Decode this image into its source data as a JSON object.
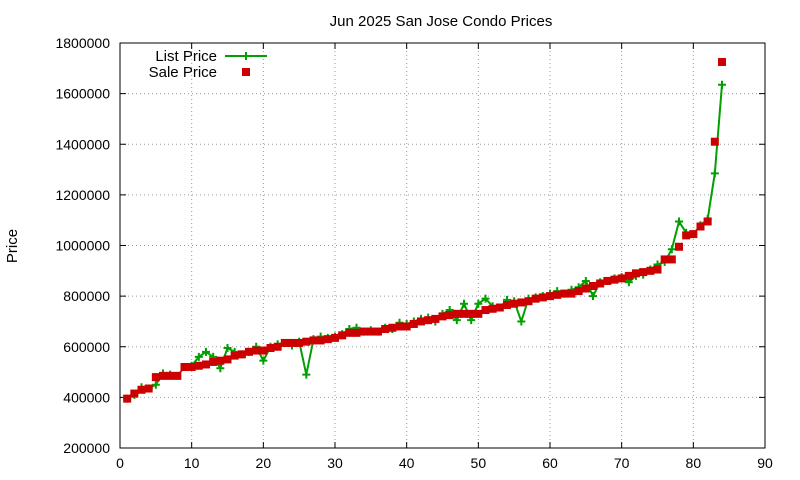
{
  "chart_data": {
    "type": "line",
    "title": "Jun 2025 San Jose Condo Prices",
    "xlabel": "",
    "ylabel": "Price",
    "xlim": [
      0,
      90
    ],
    "ylim": [
      200000,
      1800000
    ],
    "x_ticks": [
      0,
      10,
      20,
      30,
      40,
      50,
      60,
      70,
      80,
      90
    ],
    "y_ticks": [
      200000,
      400000,
      600000,
      800000,
      1000000,
      1200000,
      1400000,
      1600000,
      1800000
    ],
    "grid": true,
    "legend_position": "top-left",
    "series": [
      {
        "name": "List Price",
        "style": "line-plus",
        "color": "#00a000",
        "x": [
          1,
          2,
          3,
          4,
          5,
          6,
          7,
          8,
          9,
          10,
          11,
          12,
          13,
          14,
          15,
          16,
          17,
          18,
          19,
          20,
          21,
          22,
          23,
          24,
          25,
          26,
          27,
          28,
          29,
          30,
          31,
          32,
          33,
          34,
          35,
          36,
          37,
          38,
          39,
          40,
          41,
          42,
          43,
          44,
          45,
          46,
          47,
          48,
          49,
          50,
          51,
          52,
          53,
          54,
          55,
          56,
          57,
          58,
          59,
          60,
          61,
          62,
          63,
          64,
          65,
          66,
          67,
          68,
          69,
          70,
          71,
          72,
          73,
          74,
          75,
          76,
          77,
          78,
          79,
          80,
          81,
          82,
          83,
          84
        ],
        "y": [
          395000,
          410000,
          440000,
          435000,
          450000,
          495000,
          490000,
          485000,
          520000,
          525000,
          560000,
          580000,
          560000,
          515000,
          595000,
          580000,
          570000,
          580000,
          600000,
          545000,
          600000,
          610000,
          615000,
          605000,
          620000,
          490000,
          630000,
          640000,
          635000,
          640000,
          650000,
          670000,
          675000,
          660000,
          665000,
          660000,
          675000,
          670000,
          695000,
          690000,
          700000,
          710000,
          715000,
          700000,
          730000,
          745000,
          705000,
          770000,
          705000,
          770000,
          790000,
          760000,
          755000,
          785000,
          780000,
          700000,
          790000,
          795000,
          800000,
          810000,
          820000,
          810000,
          825000,
          835000,
          860000,
          800000,
          855000,
          860000,
          870000,
          875000,
          855000,
          880000,
          885000,
          905000,
          925000,
          935000,
          985000,
          1095000,
          1050000,
          1045000,
          1080000,
          1105000,
          1285000,
          1635000
        ]
      },
      {
        "name": "Sale Price",
        "style": "square",
        "color": "#cc0000",
        "x": [
          1,
          2,
          3,
          4,
          5,
          6,
          7,
          8,
          9,
          10,
          11,
          12,
          13,
          14,
          15,
          16,
          17,
          18,
          19,
          20,
          21,
          22,
          23,
          24,
          25,
          26,
          27,
          28,
          29,
          30,
          31,
          32,
          33,
          34,
          35,
          36,
          37,
          38,
          39,
          40,
          41,
          42,
          43,
          44,
          45,
          46,
          47,
          48,
          49,
          50,
          51,
          52,
          53,
          54,
          55,
          56,
          57,
          58,
          59,
          60,
          61,
          62,
          63,
          64,
          65,
          66,
          67,
          68,
          69,
          70,
          71,
          72,
          73,
          74,
          75,
          76,
          77,
          78,
          79,
          80,
          81,
          82,
          83,
          84
        ],
        "y": [
          395000,
          415000,
          430000,
          435000,
          480000,
          485000,
          485000,
          485000,
          520000,
          520000,
          525000,
          530000,
          540000,
          545000,
          550000,
          565000,
          570000,
          580000,
          585000,
          585000,
          595000,
          600000,
          615000,
          615000,
          615000,
          620000,
          625000,
          625000,
          630000,
          635000,
          645000,
          655000,
          655000,
          660000,
          660000,
          660000,
          670000,
          675000,
          680000,
          680000,
          690000,
          700000,
          705000,
          710000,
          720000,
          725000,
          730000,
          730000,
          730000,
          730000,
          745000,
          750000,
          755000,
          765000,
          770000,
          775000,
          780000,
          790000,
          795000,
          800000,
          805000,
          810000,
          810000,
          820000,
          830000,
          840000,
          850000,
          860000,
          865000,
          870000,
          880000,
          890000,
          895000,
          900000,
          905000,
          945000,
          945000,
          995000,
          1040000,
          1045000,
          1075000,
          1095000,
          1410000,
          1725000
        ]
      }
    ]
  }
}
